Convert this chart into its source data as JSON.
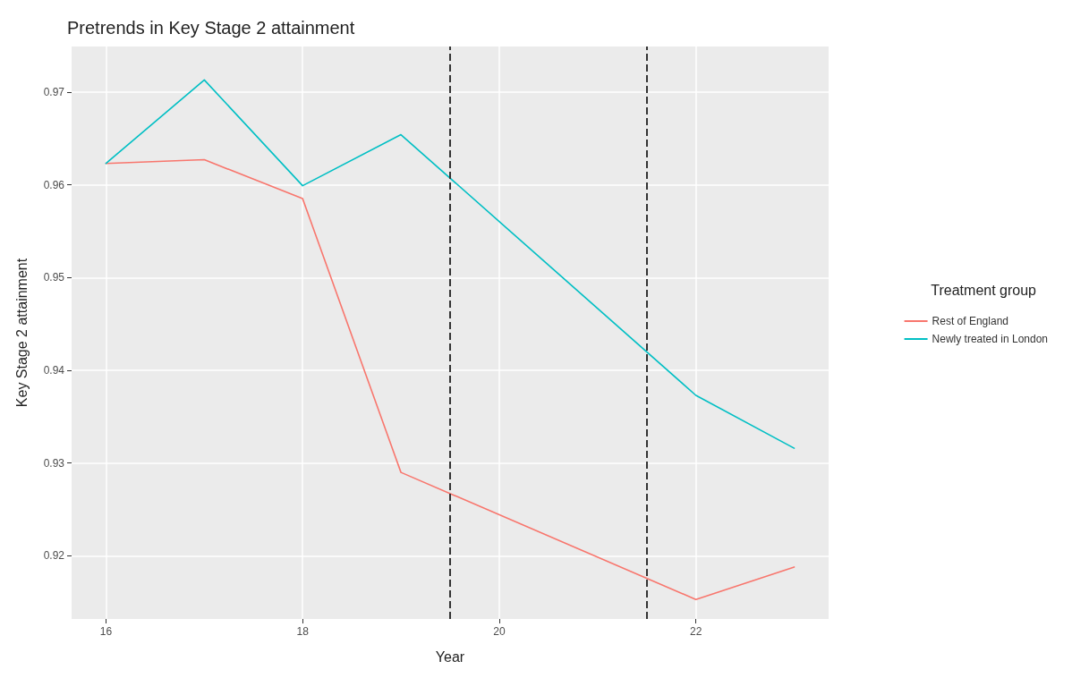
{
  "chart_data": {
    "type": "line",
    "title": "Pretrends in Key Stage 2 attainment",
    "xlabel": "Year",
    "ylabel": "Key Stage 2 attainment",
    "legend_title": "Treatment group",
    "legend": "right",
    "grid": true,
    "marker": "none",
    "line_style": "solid",
    "x": [
      16,
      17,
      18,
      19,
      20,
      21,
      22,
      23
    ],
    "xlim": [
      15.65,
      23.35
    ],
    "xticks": [
      16,
      18,
      20,
      22
    ],
    "ylim": [
      0.9132,
      0.9749
    ],
    "yticks": [
      0.92,
      0.93,
      0.94,
      0.95,
      0.96,
      0.97
    ],
    "series": [
      {
        "name": "Rest of England",
        "color": "#f8766d",
        "values": [
          0.9623,
          0.9627,
          0.9585,
          0.929,
          null,
          null,
          0.9153,
          0.9188
        ]
      },
      {
        "name": "Newly treated in London",
        "color": "#00bfc4",
        "values": [
          0.9623,
          0.9713,
          0.9599,
          0.9654,
          null,
          null,
          0.9373,
          0.9316
        ]
      }
    ],
    "ref_lines": [
      {
        "axis": "x",
        "value": 19.5,
        "color": "#333333",
        "line_style": "dashed"
      },
      {
        "axis": "x",
        "value": 21.5,
        "color": "#333333",
        "line_style": "dashed"
      }
    ]
  }
}
